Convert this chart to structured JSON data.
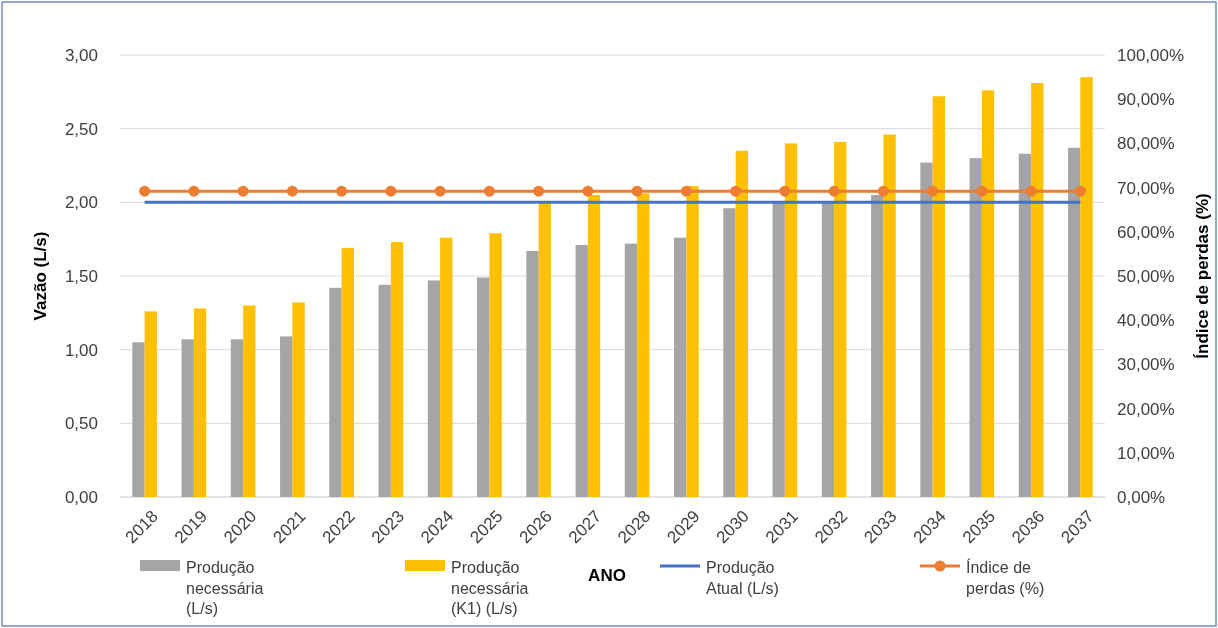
{
  "chart_data": {
    "type": "bar",
    "xlabel": "ANO",
    "ylabel": "Vazão (L/s)",
    "y2label": "Índice de perdas (%)",
    "categories": [
      "2018",
      "2019",
      "2020",
      "2021",
      "2022",
      "2023",
      "2024",
      "2025",
      "2026",
      "2027",
      "2028",
      "2029",
      "2030",
      "2031",
      "2032",
      "2033",
      "2034",
      "2035",
      "2036",
      "2037"
    ],
    "series": [
      {
        "name": "Produção necessária (L/s)",
        "color": "#a5a5a5",
        "values": [
          1.05,
          1.07,
          1.07,
          1.09,
          1.42,
          1.44,
          1.47,
          1.49,
          1.67,
          1.71,
          1.72,
          1.76,
          1.96,
          2.0,
          2.0,
          2.05,
          2.27,
          2.3,
          2.33,
          2.37
        ]
      },
      {
        "name": "Produção necessária (K1) (L/s)",
        "color": "#ffc000",
        "values": [
          1.26,
          1.28,
          1.3,
          1.32,
          1.69,
          1.73,
          1.76,
          1.79,
          2.0,
          2.05,
          2.06,
          2.11,
          2.35,
          2.4,
          2.41,
          2.46,
          2.72,
          2.76,
          2.81,
          2.85
        ]
      },
      {
        "name": "Produção Atual (L/s)",
        "type": "line",
        "color": "#4472c4",
        "marker": "none",
        "values": [
          2.0,
          2.0,
          2.0,
          2.0,
          2.0,
          2.0,
          2.0,
          2.0,
          2.0,
          2.0,
          2.0,
          2.0,
          2.0,
          2.0,
          2.0,
          2.0,
          2.0,
          2.0,
          2.0,
          2.0
        ]
      },
      {
        "name": "Índice de perdas (%)",
        "type": "line",
        "axis": "y2",
        "color": "#ed7d31",
        "marker": "circle",
        "values": [
          69.2,
          69.2,
          69.2,
          69.2,
          69.2,
          69.2,
          69.2,
          69.2,
          69.2,
          69.2,
          69.2,
          69.2,
          69.2,
          69.2,
          69.2,
          69.2,
          69.2,
          69.2,
          69.2,
          69.2
        ]
      }
    ],
    "ylim": [
      0,
      3
    ],
    "yticks": [
      {
        "value": 0,
        "label": "0,00"
      },
      {
        "value": 0.5,
        "label": "0,50"
      },
      {
        "value": 1,
        "label": "1,00"
      },
      {
        "value": 1.5,
        "label": "1,50"
      },
      {
        "value": 2,
        "label": "2,00"
      },
      {
        "value": 2.5,
        "label": "2,50"
      },
      {
        "value": 3,
        "label": "3,00"
      }
    ],
    "y2lim": [
      0,
      100
    ],
    "y2ticks": [
      {
        "value": 0,
        "label": "0,00%"
      },
      {
        "value": 10,
        "label": "10,00%"
      },
      {
        "value": 20,
        "label": "20,00%"
      },
      {
        "value": 30,
        "label": "30,00%"
      },
      {
        "value": 40,
        "label": "40,00%"
      },
      {
        "value": 50,
        "label": "50,00%"
      },
      {
        "value": 60,
        "label": "60,00%"
      },
      {
        "value": 70,
        "label": "70,00%"
      },
      {
        "value": 80,
        "label": "80,00%"
      },
      {
        "value": 90,
        "label": "90,00%"
      },
      {
        "value": 100,
        "label": "100,00%"
      }
    ],
    "grid": "y",
    "legend": "bottom"
  }
}
